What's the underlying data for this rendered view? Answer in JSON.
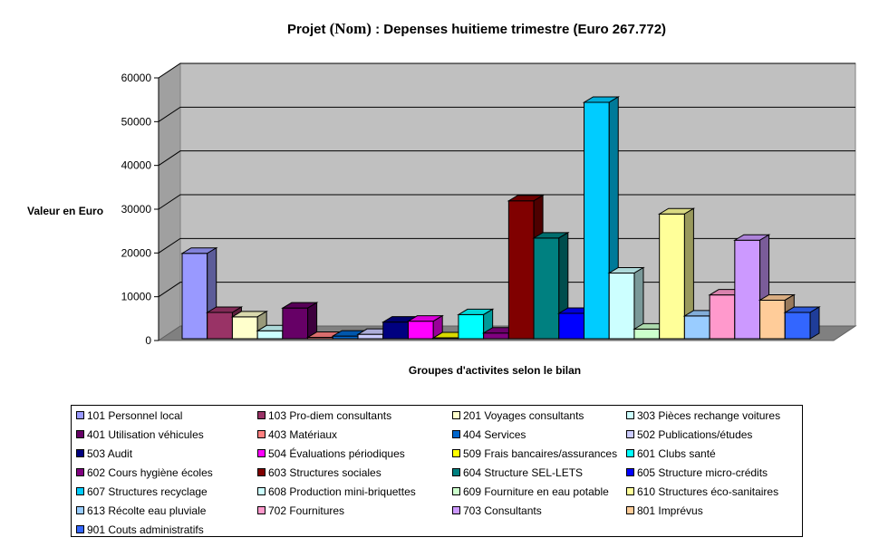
{
  "chart_data": {
    "type": "bar",
    "title_parts": [
      "Projet ",
      "(Nom)",
      " : Depenses huitieme trimestre (Euro 267.772)"
    ],
    "xlabel": "Groupes d'activites selon le bilan",
    "ylabel": "Valeur en Euro",
    "ylim": [
      0,
      60000
    ],
    "yticks": [
      {
        "value": 0,
        "label": "0"
      },
      {
        "value": 10000,
        "label": "10000"
      },
      {
        "value": 20000,
        "label": "20000"
      },
      {
        "value": 30000,
        "label": "30000"
      },
      {
        "value": 40000,
        "label": "40000"
      },
      {
        "value": 50000,
        "label": "50000"
      },
      {
        "value": 60000,
        "label": "60000"
      }
    ],
    "grid": true,
    "legend_position": "bottom",
    "series": [
      {
        "name": "101 Personnel local",
        "value": 19500,
        "color": "#9999ff"
      },
      {
        "name": "103 Pro-diem consultants",
        "value": 6000,
        "color": "#993366"
      },
      {
        "name": "201 Voyages consultants",
        "value": 5000,
        "color": "#ffffcc"
      },
      {
        "name": "303 Pièces rechange voitures",
        "value": 1800,
        "color": "#ccffff"
      },
      {
        "name": "401 Utilisation véhicules",
        "value": 7000,
        "color": "#660066"
      },
      {
        "name": "403 Matériaux",
        "value": 300,
        "color": "#ff8080"
      },
      {
        "name": "404 Services",
        "value": 600,
        "color": "#0066cc"
      },
      {
        "name": "502 Publications/études",
        "value": 1000,
        "color": "#ccccff"
      },
      {
        "name": "503 Audit",
        "value": 3800,
        "color": "#000080"
      },
      {
        "name": "504 Évaluations périodiques",
        "value": 4000,
        "color": "#ff00ff"
      },
      {
        "name": "509 Frais bancaires/assurances",
        "value": 200,
        "color": "#ffff00"
      },
      {
        "name": "601 Clubs santé",
        "value": 5500,
        "color": "#00ffff"
      },
      {
        "name": "602 Cours hygiène écoles",
        "value": 1300,
        "color": "#800080"
      },
      {
        "name": "603 Structures sociales",
        "value": 31500,
        "color": "#800000"
      },
      {
        "name": "604 Structure SEL-LETS",
        "value": 23000,
        "color": "#008080"
      },
      {
        "name": "605 Structure micro-crédits",
        "value": 5800,
        "color": "#0000ff"
      },
      {
        "name": "607 Structures recyclage",
        "value": 54000,
        "color": "#00ccff"
      },
      {
        "name": "608 Production mini-briquettes",
        "value": 15000,
        "color": "#ccffff"
      },
      {
        "name": "609 Fourniture en eau potable",
        "value": 2200,
        "color": "#ccffcc"
      },
      {
        "name": "610 Structures éco-sanitaires",
        "value": 28500,
        "color": "#ffff99"
      },
      {
        "name": "613 Récolte eau pluviale",
        "value": 5200,
        "color": "#99ccff"
      },
      {
        "name": "702 Fournitures",
        "value": 10000,
        "color": "#ff99cc"
      },
      {
        "name": "703 Consultants",
        "value": 22500,
        "color": "#cc99ff"
      },
      {
        "name": "801 Imprévus",
        "value": 8800,
        "color": "#ffcc99"
      },
      {
        "name": "901 Couts administratifs",
        "value": 6000,
        "color": "#3366ff"
      }
    ]
  }
}
